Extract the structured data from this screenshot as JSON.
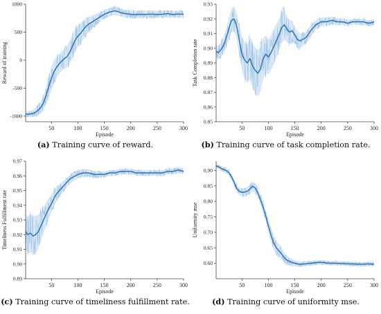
{
  "captions": [
    {
      "letter": "(a)",
      "text": " Training curve of reward."
    },
    {
      "letter": "(b)",
      "text": " Training curve of task completion rate."
    },
    {
      "letter": "(c)",
      "text": " Training curve of timeliness fulfillment rate."
    },
    {
      "letter": "(d)",
      "text": " Training curve of uniformity mse."
    }
  ],
  "colors": {
    "line": "#2f73b5",
    "band": "#a9c9ea",
    "axis": "#444444"
  },
  "chart_data": [
    {
      "type": "line",
      "title": "",
      "xlabel": "Episode",
      "ylabel": "Reward of training",
      "xlim": [
        1,
        300
      ],
      "ylim": [
        -1100,
        1000
      ],
      "xticks": [
        50,
        100,
        150,
        200,
        250,
        300
      ],
      "yticks": [
        -1000,
        -500,
        0,
        500,
        1000
      ],
      "grid": false,
      "band": {
        "points": [
          [
            1,
            55
          ],
          [
            10,
            50
          ],
          [
            20,
            80
          ],
          [
            30,
            110
          ],
          [
            40,
            160
          ],
          [
            50,
            220
          ],
          [
            60,
            190
          ],
          [
            70,
            170
          ],
          [
            80,
            200
          ],
          [
            90,
            210
          ],
          [
            100,
            200
          ],
          [
            110,
            170
          ],
          [
            120,
            140
          ],
          [
            130,
            110
          ],
          [
            140,
            90
          ],
          [
            150,
            80
          ],
          [
            160,
            70
          ],
          [
            170,
            80
          ],
          [
            180,
            70
          ],
          [
            200,
            70
          ],
          [
            220,
            70
          ],
          [
            250,
            65
          ],
          [
            270,
            65
          ],
          [
            300,
            65
          ]
        ]
      },
      "series": [
        {
          "x": [
            1,
            5,
            10,
            15,
            20,
            25,
            30,
            35,
            40,
            45,
            50,
            55,
            60,
            65,
            70,
            75,
            80,
            85,
            90,
            95,
            100,
            105,
            110,
            115,
            120,
            125,
            130,
            135,
            140,
            145,
            150,
            155,
            160,
            165,
            170,
            175,
            180,
            190,
            200,
            210,
            220,
            230,
            240,
            250,
            260,
            270,
            280,
            290,
            300
          ],
          "values": [
            -960,
            -965,
            -960,
            -950,
            -930,
            -890,
            -840,
            -760,
            -620,
            -460,
            -320,
            -200,
            -120,
            -60,
            -10,
            30,
            70,
            150,
            260,
            360,
            430,
            480,
            540,
            600,
            640,
            670,
            700,
            730,
            760,
            790,
            820,
            840,
            860,
            870,
            880,
            870,
            850,
            830,
            820,
            815,
            820,
            818,
            822,
            815,
            820,
            830,
            815,
            825,
            820
          ]
        }
      ]
    },
    {
      "type": "line",
      "title": "",
      "xlabel": "Episode",
      "ylabel": "Task Completion rate",
      "xlim": [
        1,
        300
      ],
      "ylim": [
        0.85,
        0.93
      ],
      "xticks": [
        50,
        100,
        150,
        200,
        250,
        300
      ],
      "yticks": [
        0.85,
        0.86,
        0.87,
        0.88,
        0.89,
        0.9,
        0.91,
        0.92,
        0.93
      ],
      "grid": false,
      "band": {
        "points": [
          [
            1,
            0.004
          ],
          [
            10,
            0.005
          ],
          [
            20,
            0.006
          ],
          [
            30,
            0.008
          ],
          [
            40,
            0.009
          ],
          [
            50,
            0.012
          ],
          [
            60,
            0.013
          ],
          [
            70,
            0.015
          ],
          [
            80,
            0.016
          ],
          [
            90,
            0.014
          ],
          [
            100,
            0.012
          ],
          [
            110,
            0.012
          ],
          [
            120,
            0.011
          ],
          [
            130,
            0.01
          ],
          [
            140,
            0.008
          ],
          [
            150,
            0.006
          ],
          [
            160,
            0.005
          ],
          [
            170,
            0.004
          ],
          [
            180,
            0.004
          ],
          [
            200,
            0.003
          ],
          [
            250,
            0.002
          ],
          [
            300,
            0.002
          ]
        ]
      },
      "series": [
        {
          "x": [
            1,
            5,
            10,
            15,
            20,
            25,
            30,
            35,
            40,
            45,
            50,
            55,
            60,
            65,
            70,
            75,
            80,
            85,
            90,
            95,
            100,
            105,
            110,
            115,
            120,
            125,
            130,
            135,
            140,
            145,
            150,
            155,
            160,
            165,
            170,
            175,
            180,
            190,
            200,
            210,
            220,
            230,
            240,
            250,
            260,
            270,
            280,
            290,
            300
          ],
          "values": [
            0.898,
            0.897,
            0.899,
            0.902,
            0.907,
            0.913,
            0.919,
            0.92,
            0.915,
            0.905,
            0.896,
            0.892,
            0.89,
            0.893,
            0.888,
            0.885,
            0.883,
            0.886,
            0.893,
            0.896,
            0.894,
            0.897,
            0.901,
            0.905,
            0.909,
            0.914,
            0.916,
            0.913,
            0.911,
            0.912,
            0.909,
            0.906,
            0.905,
            0.906,
            0.907,
            0.909,
            0.912,
            0.916,
            0.918,
            0.918,
            0.919,
            0.918,
            0.918,
            0.917,
            0.918,
            0.918,
            0.918,
            0.917,
            0.918
          ]
        }
      ]
    },
    {
      "type": "line",
      "title": "",
      "xlabel": "Episode",
      "ylabel": "Timeliness Fulfillment rate",
      "xlim": [
        1,
        300
      ],
      "ylim": [
        0.89,
        0.97
      ],
      "xticks": [
        50,
        100,
        150,
        200,
        250,
        300
      ],
      "yticks": [
        0.89,
        0.9,
        0.91,
        0.92,
        0.93,
        0.94,
        0.95,
        0.96,
        0.97
      ],
      "grid": false,
      "band": {
        "points": [
          [
            1,
            0.012
          ],
          [
            10,
            0.013
          ],
          [
            20,
            0.013
          ],
          [
            30,
            0.01
          ],
          [
            40,
            0.008
          ],
          [
            50,
            0.006
          ],
          [
            60,
            0.005
          ],
          [
            70,
            0.004
          ],
          [
            80,
            0.003
          ],
          [
            100,
            0.003
          ],
          [
            150,
            0.002
          ],
          [
            200,
            0.002
          ],
          [
            250,
            0.002
          ],
          [
            300,
            0.002
          ]
        ]
      },
      "series": [
        {
          "x": [
            1,
            5,
            10,
            15,
            20,
            25,
            30,
            35,
            40,
            45,
            50,
            55,
            60,
            65,
            70,
            75,
            80,
            85,
            90,
            95,
            100,
            110,
            120,
            130,
            140,
            150,
            160,
            170,
            180,
            190,
            200,
            210,
            220,
            230,
            240,
            250,
            260,
            270,
            280,
            290,
            300
          ],
          "values": [
            0.922,
            0.92,
            0.921,
            0.919,
            0.92,
            0.922,
            0.926,
            0.93,
            0.934,
            0.938,
            0.941,
            0.945,
            0.948,
            0.95,
            0.952,
            0.954,
            0.956,
            0.958,
            0.959,
            0.96,
            0.961,
            0.962,
            0.962,
            0.961,
            0.961,
            0.961,
            0.962,
            0.962,
            0.963,
            0.963,
            0.963,
            0.962,
            0.962,
            0.962,
            0.962,
            0.962,
            0.962,
            0.963,
            0.963,
            0.964,
            0.963
          ]
        }
      ]
    },
    {
      "type": "line",
      "title": "",
      "xlabel": "Episode",
      "ylabel": "Uniformity mse",
      "xlim": [
        1,
        300
      ],
      "ylim": [
        0.55,
        0.93
      ],
      "xticks": [
        50,
        100,
        150,
        200,
        250,
        300
      ],
      "yticks": [
        0.6,
        0.65,
        0.7,
        0.75,
        0.8,
        0.85,
        0.9
      ],
      "grid": false,
      "band": {
        "points": [
          [
            1,
            0.006
          ],
          [
            20,
            0.008
          ],
          [
            40,
            0.012
          ],
          [
            60,
            0.014
          ],
          [
            80,
            0.016
          ],
          [
            100,
            0.02
          ],
          [
            110,
            0.022
          ],
          [
            120,
            0.02
          ],
          [
            130,
            0.016
          ],
          [
            140,
            0.012
          ],
          [
            150,
            0.01
          ],
          [
            160,
            0.008
          ],
          [
            200,
            0.007
          ],
          [
            250,
            0.007
          ],
          [
            300,
            0.007
          ]
        ]
      },
      "series": [
        {
          "x": [
            1,
            5,
            10,
            15,
            20,
            25,
            30,
            35,
            40,
            45,
            50,
            55,
            60,
            65,
            70,
            75,
            80,
            85,
            90,
            95,
            100,
            105,
            110,
            115,
            120,
            125,
            130,
            135,
            140,
            145,
            150,
            155,
            160,
            170,
            180,
            190,
            200,
            210,
            220,
            230,
            240,
            250,
            260,
            270,
            280,
            290,
            300
          ],
          "values": [
            0.915,
            0.912,
            0.907,
            0.903,
            0.9,
            0.893,
            0.88,
            0.862,
            0.842,
            0.832,
            0.829,
            0.83,
            0.833,
            0.84,
            0.849,
            0.843,
            0.828,
            0.805,
            0.78,
            0.753,
            0.72,
            0.69,
            0.665,
            0.65,
            0.64,
            0.63,
            0.618,
            0.61,
            0.606,
            0.602,
            0.6,
            0.598,
            0.597,
            0.598,
            0.6,
            0.602,
            0.603,
            0.601,
            0.6,
            0.6,
            0.599,
            0.598,
            0.598,
            0.597,
            0.597,
            0.598,
            0.597
          ]
        }
      ]
    }
  ]
}
